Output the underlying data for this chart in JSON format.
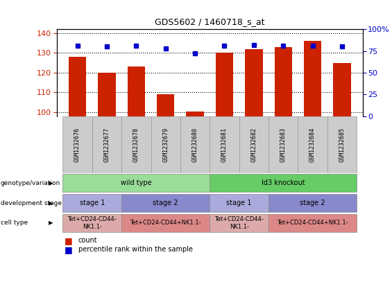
{
  "title": "GDS5602 / 1460718_s_at",
  "samples": [
    "GSM1232676",
    "GSM1232677",
    "GSM1232678",
    "GSM1232679",
    "GSM1232680",
    "GSM1232681",
    "GSM1232682",
    "GSM1232683",
    "GSM1232684",
    "GSM1232685"
  ],
  "counts": [
    128,
    120,
    123,
    109,
    100.3,
    130,
    132,
    133,
    136,
    125
  ],
  "percentiles": [
    81,
    80,
    81,
    78,
    72,
    81,
    82,
    81,
    81,
    80
  ],
  "ylim_left": [
    98,
    142
  ],
  "ylim_right": [
    0,
    100
  ],
  "yticks_left": [
    100,
    110,
    120,
    130,
    140
  ],
  "yticks_right": [
    0,
    25,
    50,
    75,
    100
  ],
  "bar_color": "#cc2200",
  "dot_color": "#0000cc",
  "bar_width": 0.6,
  "genotype_groups": [
    {
      "label": "wild type",
      "start": 0,
      "end": 4,
      "color": "#99dd99"
    },
    {
      "label": "Id3 knockout",
      "start": 5,
      "end": 9,
      "color": "#66cc66"
    }
  ],
  "stage_groups": [
    {
      "label": "stage 1",
      "start": 0,
      "end": 1,
      "color": "#aaaadd"
    },
    {
      "label": "stage 2",
      "start": 2,
      "end": 4,
      "color": "#8888cc"
    },
    {
      "label": "stage 1",
      "start": 5,
      "end": 6,
      "color": "#aaaadd"
    },
    {
      "label": "stage 2",
      "start": 7,
      "end": 9,
      "color": "#8888cc"
    }
  ],
  "cell_groups": [
    {
      "label": "Tet+CD24-CD44-\nNK1.1-",
      "start": 0,
      "end": 1,
      "color": "#ddaaaa"
    },
    {
      "label": "Tet+CD24-CD44+NK1.1-",
      "start": 2,
      "end": 4,
      "color": "#dd8888"
    },
    {
      "label": "Tet+CD24-CD44-\nNK1.1-",
      "start": 5,
      "end": 6,
      "color": "#ddaaaa"
    },
    {
      "label": "Tet+CD24-CD44+NK1.1-",
      "start": 7,
      "end": 9,
      "color": "#dd8888"
    }
  ],
  "row_labels": [
    "genotype/variation",
    "development stage",
    "cell type"
  ],
  "legend_count_color": "#cc2200",
  "legend_dot_color": "#0000cc",
  "left_axis_color": "#cc2200",
  "right_axis_color": "#0000cc"
}
